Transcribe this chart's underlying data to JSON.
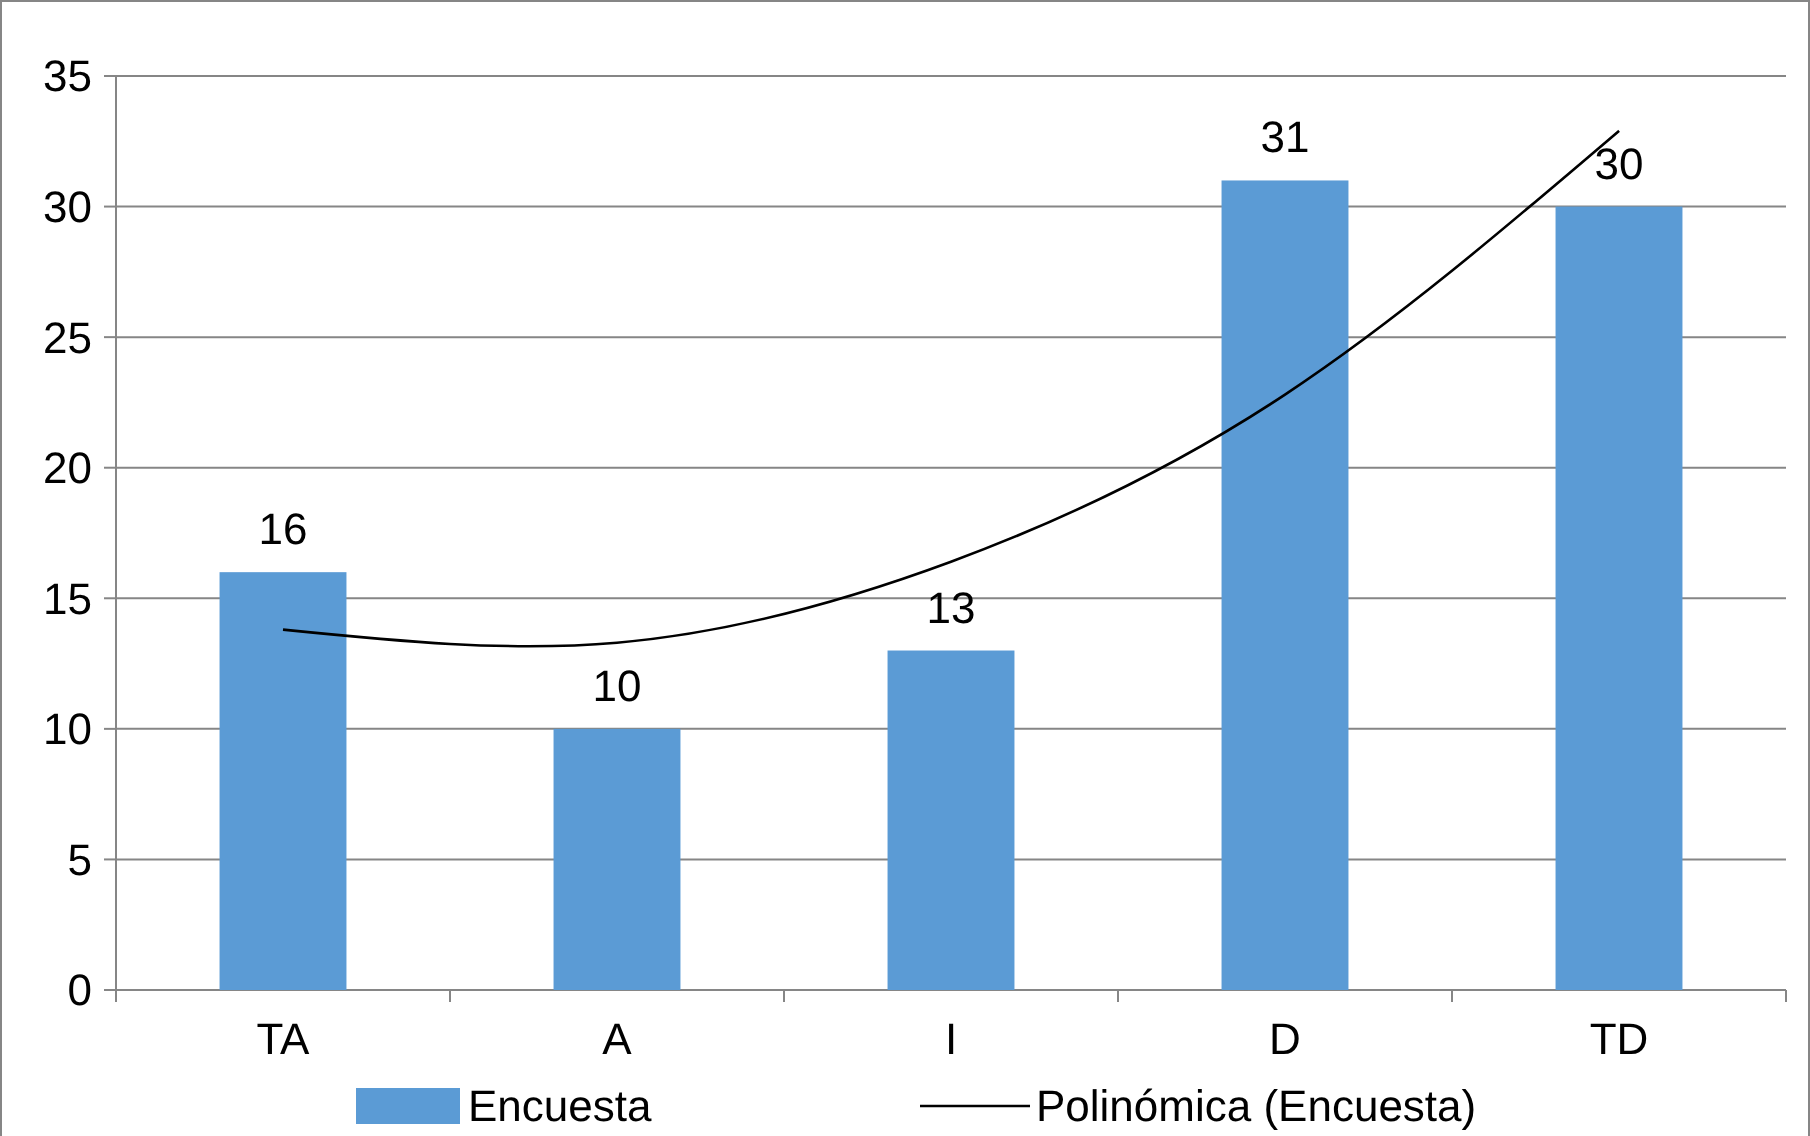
{
  "chart_data": {
    "type": "bar",
    "categories": [
      "TA",
      "A",
      "I",
      "D",
      "TD"
    ],
    "series": [
      {
        "name": "Encuesta",
        "color": "#5b9bd5",
        "values": [
          16,
          10,
          13,
          31,
          30
        ],
        "value_labels": [
          "16",
          "10",
          "13",
          "31",
          "30"
        ]
      },
      {
        "name": "Polinómica (Encuesta)",
        "type": "line",
        "color": "#000000",
        "values": [
          13.8,
          13.3,
          16.4,
          22.8,
          32.9
        ]
      }
    ],
    "ylim": [
      0,
      35
    ],
    "yticks": [
      0,
      5,
      10,
      15,
      20,
      25,
      30,
      35
    ],
    "grid": "y",
    "legend": "bottom"
  }
}
